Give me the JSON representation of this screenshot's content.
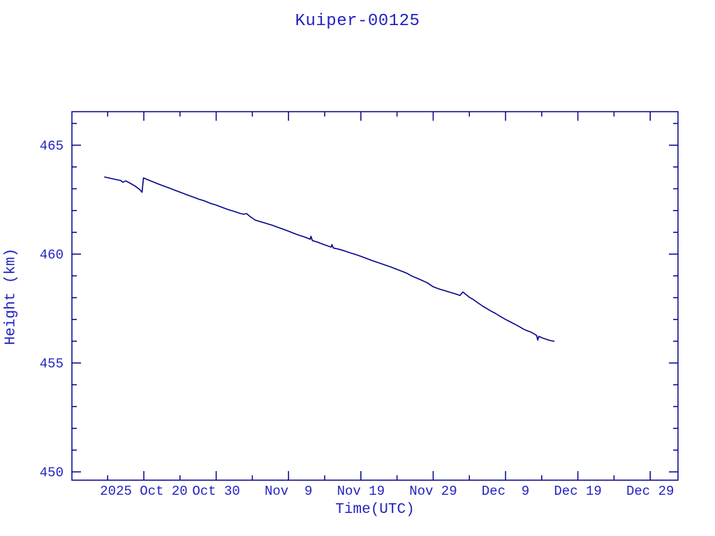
{
  "chart_data": {
    "type": "line",
    "title": "Kuiper-00125",
    "xlabel": "Time(UTC)",
    "ylabel": "Height (km)",
    "legend": "none",
    "grid": false,
    "colors": {
      "line": "#00008b",
      "frame": "#00008b",
      "text": "#2222c0",
      "background": "#ffffff"
    },
    "x_axis": {
      "t_unit": "days since first sample (first sample ~2025 Oct 14)",
      "lim": [
        -3.94,
        79.84
      ],
      "major_ticks": [
        {
          "t": 6,
          "label": "2025 Oct 20"
        },
        {
          "t": 16,
          "label": "Oct 30"
        },
        {
          "t": 26,
          "label": "Nov  9"
        },
        {
          "t": 36,
          "label": "Nov 19"
        },
        {
          "t": 46,
          "label": "Nov 29"
        },
        {
          "t": 56,
          "label": "Dec  9"
        },
        {
          "t": 66,
          "label": "Dec 19"
        },
        {
          "t": 76,
          "label": "Dec 29"
        }
      ],
      "minor_ticks": [
        1,
        11,
        21,
        31,
        41,
        51,
        61,
        71
      ]
    },
    "y_axis": {
      "lim": [
        449.62,
        466.54
      ],
      "major_ticks": [
        {
          "v": 465,
          "label": "465"
        },
        {
          "v": 460,
          "label": "460"
        },
        {
          "v": 455,
          "label": "455"
        },
        {
          "v": 450,
          "label": "450"
        }
      ],
      "minor_ticks": [
        451,
        452,
        453,
        454,
        456,
        457,
        458,
        459,
        461,
        462,
        463,
        464,
        466
      ]
    },
    "series": [
      {
        "name": "Kuiper-00125 height",
        "points": [
          [
            0.6,
            463.54
          ],
          [
            1.4,
            463.48
          ],
          [
            2.2,
            463.42
          ],
          [
            2.8,
            463.38
          ],
          [
            3.1,
            463.3
          ],
          [
            3.5,
            463.36
          ],
          [
            4.2,
            463.24
          ],
          [
            4.8,
            463.12
          ],
          [
            5.2,
            463.02
          ],
          [
            5.5,
            462.94
          ],
          [
            5.75,
            462.84
          ],
          [
            5.95,
            463.5
          ],
          [
            6.5,
            463.42
          ],
          [
            7.2,
            463.33
          ],
          [
            8.0,
            463.22
          ],
          [
            8.8,
            463.12
          ],
          [
            9.6,
            463.02
          ],
          [
            10.4,
            462.92
          ],
          [
            11.2,
            462.82
          ],
          [
            12.0,
            462.72
          ],
          [
            12.8,
            462.62
          ],
          [
            13.6,
            462.52
          ],
          [
            14.4,
            462.44
          ],
          [
            15.2,
            462.33
          ],
          [
            16.0,
            462.25
          ],
          [
            16.8,
            462.15
          ],
          [
            17.6,
            462.05
          ],
          [
            18.4,
            461.97
          ],
          [
            19.2,
            461.88
          ],
          [
            19.8,
            461.83
          ],
          [
            20.2,
            461.86
          ],
          [
            20.7,
            461.72
          ],
          [
            21.4,
            461.56
          ],
          [
            22.2,
            461.48
          ],
          [
            23.0,
            461.4
          ],
          [
            23.8,
            461.32
          ],
          [
            24.6,
            461.22
          ],
          [
            25.3,
            461.14
          ],
          [
            26.0,
            461.05
          ],
          [
            26.7,
            460.96
          ],
          [
            27.4,
            460.87
          ],
          [
            28.1,
            460.8
          ],
          [
            28.8,
            460.71
          ],
          [
            29.0,
            460.68
          ],
          [
            29.1,
            460.82
          ],
          [
            29.3,
            460.62
          ],
          [
            30.0,
            460.55
          ],
          [
            30.7,
            460.46
          ],
          [
            31.4,
            460.38
          ],
          [
            31.9,
            460.32
          ],
          [
            32.0,
            460.44
          ],
          [
            32.2,
            460.28
          ],
          [
            33.0,
            460.22
          ],
          [
            33.8,
            460.14
          ],
          [
            34.6,
            460.05
          ],
          [
            35.3,
            459.98
          ],
          [
            36.0,
            459.9
          ],
          [
            36.7,
            459.81
          ],
          [
            37.4,
            459.72
          ],
          [
            38.1,
            459.64
          ],
          [
            38.8,
            459.56
          ],
          [
            39.5,
            459.48
          ],
          [
            40.2,
            459.4
          ],
          [
            40.9,
            459.31
          ],
          [
            41.6,
            459.22
          ],
          [
            42.3,
            459.13
          ],
          [
            43.0,
            459.0
          ],
          [
            43.7,
            458.9
          ],
          [
            44.4,
            458.8
          ],
          [
            45.2,
            458.68
          ],
          [
            46.0,
            458.5
          ],
          [
            46.8,
            458.4
          ],
          [
            47.6,
            458.32
          ],
          [
            48.4,
            458.24
          ],
          [
            49.2,
            458.16
          ],
          [
            49.7,
            458.1
          ],
          [
            50.1,
            458.26
          ],
          [
            50.4,
            458.18
          ],
          [
            51.0,
            458.02
          ],
          [
            51.6,
            457.9
          ],
          [
            52.2,
            457.76
          ],
          [
            52.8,
            457.62
          ],
          [
            53.4,
            457.5
          ],
          [
            54.0,
            457.38
          ],
          [
            54.6,
            457.28
          ],
          [
            55.3,
            457.13
          ],
          [
            56.0,
            457.0
          ],
          [
            56.7,
            456.88
          ],
          [
            57.4,
            456.76
          ],
          [
            58.0,
            456.65
          ],
          [
            58.5,
            456.55
          ],
          [
            59.0,
            456.48
          ],
          [
            59.5,
            456.42
          ],
          [
            60.0,
            456.33
          ],
          [
            60.3,
            456.26
          ],
          [
            60.45,
            456.05
          ],
          [
            60.6,
            456.22
          ],
          [
            61.1,
            456.15
          ],
          [
            61.7,
            456.08
          ],
          [
            62.2,
            456.03
          ],
          [
            62.7,
            456.0
          ]
        ]
      }
    ],
    "annotations": []
  }
}
